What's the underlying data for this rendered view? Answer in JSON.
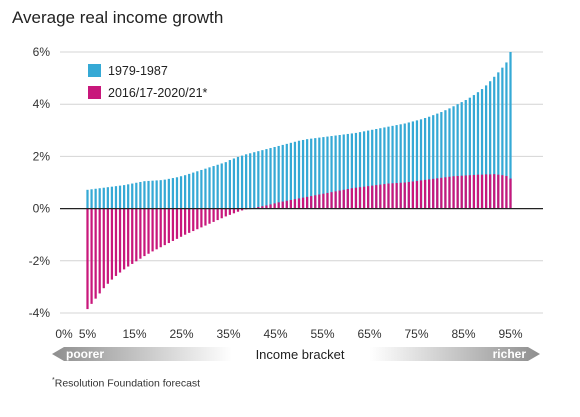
{
  "chart_data": {
    "type": "bar",
    "title": "Average real income growth",
    "xlabel": "Income bracket",
    "ylabel": "",
    "ylim": [
      -4,
      6
    ],
    "yticks": [
      "6%",
      "4%",
      "2%",
      "0%",
      "-2%",
      "-4%"
    ],
    "xticks": [
      "0%",
      "5%",
      "15%",
      "25%",
      "35%",
      "45%",
      "55%",
      "65%",
      "75%",
      "85%",
      "95%"
    ],
    "grid": true,
    "legend_position": "top-left",
    "arrow_left_label": "poorer",
    "arrow_right_label": "richer",
    "percentiles_from": 5,
    "percentiles_to": 95,
    "series": [
      {
        "name": "1979-1987",
        "color": "#35a9d5",
        "values": [
          0.72,
          0.74,
          0.76,
          0.78,
          0.8,
          0.82,
          0.84,
          0.86,
          0.88,
          0.9,
          0.93,
          0.96,
          0.99,
          1.02,
          1.05,
          1.06,
          1.07,
          1.08,
          1.09,
          1.11,
          1.14,
          1.17,
          1.2,
          1.24,
          1.28,
          1.33,
          1.38,
          1.43,
          1.48,
          1.53,
          1.58,
          1.63,
          1.68,
          1.73,
          1.78,
          1.86,
          1.92,
          1.98,
          2.03,
          2.08,
          2.12,
          2.16,
          2.2,
          2.24,
          2.28,
          2.32,
          2.36,
          2.4,
          2.44,
          2.48,
          2.52,
          2.56,
          2.6,
          2.63,
          2.66,
          2.68,
          2.7,
          2.72,
          2.74,
          2.76,
          2.78,
          2.8,
          2.82,
          2.84,
          2.86,
          2.88,
          2.9,
          2.93,
          2.96,
          2.99,
          3.02,
          3.05,
          3.08,
          3.11,
          3.14,
          3.17,
          3.2,
          3.23,
          3.26,
          3.3,
          3.34,
          3.38,
          3.42,
          3.47,
          3.52,
          3.58,
          3.64,
          3.7,
          3.77,
          3.84,
          3.92,
          4.0,
          4.08,
          4.16,
          4.25,
          4.35,
          4.46,
          4.58,
          4.72,
          4.88,
          5.05,
          5.22,
          5.4,
          5.6,
          6.0
        ]
      },
      {
        "name": "2016/17-2020/21*",
        "color": "#c8177b",
        "values": [
          -3.85,
          -3.65,
          -3.45,
          -3.25,
          -3.05,
          -2.88,
          -2.72,
          -2.58,
          -2.45,
          -2.33,
          -2.22,
          -2.12,
          -2.02,
          -1.92,
          -1.82,
          -1.73,
          -1.64,
          -1.56,
          -1.48,
          -1.4,
          -1.32,
          -1.24,
          -1.16,
          -1.08,
          -1.0,
          -0.93,
          -0.86,
          -0.79,
          -0.72,
          -0.65,
          -0.58,
          -0.51,
          -0.44,
          -0.37,
          -0.3,
          -0.24,
          -0.18,
          -0.12,
          -0.07,
          -0.03,
          0.0,
          0.03,
          0.06,
          0.09,
          0.12,
          0.16,
          0.2,
          0.24,
          0.27,
          0.3,
          0.33,
          0.36,
          0.39,
          0.42,
          0.45,
          0.48,
          0.51,
          0.54,
          0.57,
          0.6,
          0.63,
          0.66,
          0.69,
          0.72,
          0.75,
          0.78,
          0.8,
          0.82,
          0.84,
          0.86,
          0.88,
          0.9,
          0.92,
          0.94,
          0.96,
          0.97,
          0.98,
          0.99,
          1.0,
          1.02,
          1.04,
          1.06,
          1.08,
          1.1,
          1.12,
          1.14,
          1.16,
          1.18,
          1.2,
          1.22,
          1.24,
          1.25,
          1.26,
          1.27,
          1.28,
          1.29,
          1.3,
          1.3,
          1.31,
          1.31,
          1.32,
          1.3,
          1.28,
          1.25,
          1.15
        ]
      }
    ]
  },
  "footnote": {
    "marker": "*",
    "text": "Resolution Foundation forecast"
  }
}
